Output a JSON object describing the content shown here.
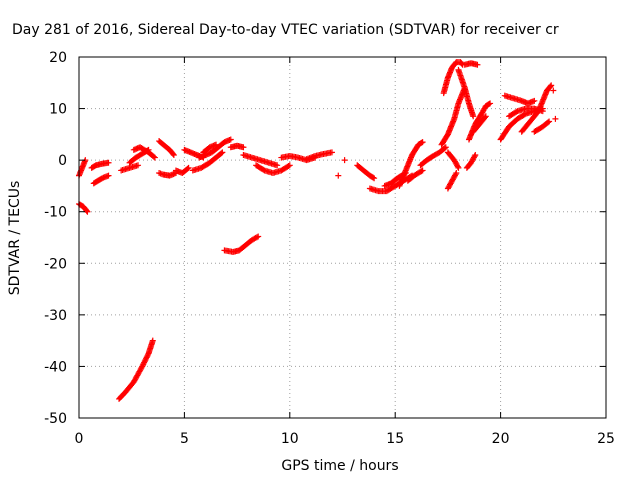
{
  "chart_data": {
    "type": "scatter",
    "title": "Day 281 of 2016, Sidereal Day-to-day VTEC variation (SDTVAR) for receiver cr",
    "xlabel": "GPS time / hours",
    "ylabel": "SDTVAR / TECUs",
    "xlim": [
      0,
      25
    ],
    "ylim": [
      -50,
      20
    ],
    "x_ticks": [
      "0",
      "5",
      "10",
      "15",
      "20",
      "25"
    ],
    "y_ticks": [
      "20",
      "10",
      "0",
      "-10",
      "-20",
      "-30",
      "-40",
      "-50"
    ],
    "x_tick_values": [
      0,
      5,
      10,
      15,
      20,
      25
    ],
    "y_tick_values": [
      20,
      10,
      0,
      -10,
      -20,
      -30,
      -40,
      -50
    ],
    "grid": true,
    "marker": "+",
    "color": "#ff0000",
    "segments": [
      [
        [
          0.0,
          -3
        ],
        [
          0.1,
          -2
        ],
        [
          0.2,
          -1
        ],
        [
          0.3,
          0
        ]
      ],
      [
        [
          0.0,
          -8.5
        ],
        [
          0.2,
          -9
        ],
        [
          0.3,
          -9.5
        ],
        [
          0.4,
          -10
        ]
      ],
      [
        [
          0.6,
          -1.5
        ],
        [
          0.8,
          -1
        ],
        [
          1.1,
          -0.7
        ],
        [
          1.4,
          -0.5
        ]
      ],
      [
        [
          0.7,
          -4.5
        ],
        [
          0.9,
          -4
        ],
        [
          1.1,
          -3.5
        ],
        [
          1.4,
          -3
        ]
      ],
      [
        [
          1.9,
          -46.3
        ],
        [
          2.2,
          -45
        ],
        [
          2.6,
          -43
        ],
        [
          3.0,
          -40
        ],
        [
          3.3,
          -37.5
        ],
        [
          3.5,
          -35
        ]
      ],
      [
        [
          2.0,
          -2
        ],
        [
          2.4,
          -1.5
        ],
        [
          2.8,
          -1
        ]
      ],
      [
        [
          2.4,
          -0.5
        ],
        [
          2.7,
          0.5
        ],
        [
          3.1,
          1.5
        ],
        [
          3.3,
          2
        ]
      ],
      [
        [
          2.6,
          2
        ],
        [
          2.9,
          2.5
        ],
        [
          3.3,
          1.5
        ],
        [
          3.6,
          0.5
        ]
      ],
      [
        [
          3.8,
          3.7
        ],
        [
          4.0,
          3
        ],
        [
          4.3,
          2
        ],
        [
          4.5,
          1
        ]
      ],
      [
        [
          3.8,
          -2.5
        ],
        [
          4.0,
          -2.8
        ],
        [
          4.3,
          -3
        ],
        [
          4.6,
          -2.5
        ]
      ],
      [
        [
          4.6,
          -2
        ],
        [
          4.9,
          -2.5
        ],
        [
          5.2,
          -1.5
        ]
      ],
      [
        [
          5.0,
          2
        ],
        [
          5.3,
          1.5
        ],
        [
          5.6,
          1
        ],
        [
          5.9,
          0.5
        ]
      ],
      [
        [
          5.4,
          -2
        ],
        [
          5.8,
          -1.5
        ],
        [
          6.2,
          -0.5
        ],
        [
          6.5,
          0.5
        ],
        [
          6.8,
          1.5
        ]
      ],
      [
        [
          5.7,
          0.5
        ],
        [
          6.0,
          1
        ],
        [
          6.3,
          1.5
        ],
        [
          6.6,
          2.5
        ],
        [
          6.9,
          3.5
        ],
        [
          7.2,
          4
        ]
      ],
      [
        [
          5.9,
          1.5
        ],
        [
          6.2,
          2.5
        ],
        [
          6.5,
          3
        ]
      ],
      [
        [
          6.9,
          -17.5
        ],
        [
          7.3,
          -17.8
        ],
        [
          7.6,
          -17.5
        ],
        [
          7.9,
          -16.5
        ],
        [
          8.2,
          -15.5
        ],
        [
          8.5,
          -14.8
        ]
      ],
      [
        [
          7.2,
          2.5
        ],
        [
          7.5,
          2.8
        ],
        [
          7.8,
          2.5
        ]
      ],
      [
        [
          7.8,
          1
        ],
        [
          8.2,
          0.5
        ],
        [
          8.6,
          0
        ],
        [
          9.0,
          -0.5
        ],
        [
          9.4,
          -1
        ]
      ],
      [
        [
          8.4,
          -1
        ],
        [
          8.8,
          -2
        ],
        [
          9.2,
          -2.5
        ],
        [
          9.6,
          -2
        ],
        [
          10.0,
          -1
        ]
      ],
      [
        [
          9.6,
          0.5
        ],
        [
          10.0,
          0.8
        ],
        [
          10.4,
          0.5
        ],
        [
          10.8,
          0
        ],
        [
          11.2,
          0.5
        ]
      ],
      [
        [
          10.8,
          0.2
        ],
        [
          11.2,
          0.8
        ],
        [
          11.6,
          1.2
        ],
        [
          12.0,
          1.5
        ]
      ],
      [
        [
          12.3,
          -3
        ]
      ],
      [
        [
          12.6,
          0
        ]
      ],
      [
        [
          13.2,
          -1
        ],
        [
          13.5,
          -2
        ],
        [
          13.8,
          -3
        ],
        [
          14.0,
          -3.5
        ]
      ],
      [
        [
          13.8,
          -5.5
        ],
        [
          14.2,
          -6
        ],
        [
          14.6,
          -6
        ],
        [
          15.0,
          -5
        ],
        [
          15.4,
          -4
        ],
        [
          15.8,
          -3
        ]
      ],
      [
        [
          14.5,
          -5
        ],
        [
          14.8,
          -4.5
        ],
        [
          15.1,
          -3.5
        ],
        [
          15.5,
          -2.5
        ]
      ],
      [
        [
          15.2,
          -5
        ],
        [
          15.5,
          -2
        ],
        [
          15.8,
          1
        ],
        [
          16.1,
          3
        ],
        [
          16.3,
          3.5
        ]
      ],
      [
        [
          15.6,
          -4
        ],
        [
          15.9,
          -3
        ],
        [
          16.3,
          -2
        ]
      ],
      [
        [
          16.2,
          -1
        ],
        [
          16.5,
          0
        ],
        [
          16.8,
          0.8
        ],
        [
          17.1,
          1.5
        ],
        [
          17.4,
          2.5
        ]
      ],
      [
        [
          17.2,
          3
        ],
        [
          17.5,
          5
        ],
        [
          17.8,
          8
        ],
        [
          18.0,
          11
        ],
        [
          18.3,
          14
        ]
      ],
      [
        [
          17.3,
          13
        ],
        [
          17.5,
          16
        ],
        [
          17.7,
          18
        ],
        [
          17.9,
          19
        ],
        [
          18.1,
          19
        ],
        [
          18.2,
          18.5
        ]
      ],
      [
        [
          17.5,
          -5.5
        ],
        [
          17.7,
          -4
        ],
        [
          17.9,
          -2.5
        ]
      ],
      [
        [
          17.5,
          1.5
        ],
        [
          17.8,
          0
        ],
        [
          18.0,
          -1.5
        ]
      ],
      [
        [
          18.0,
          17.5
        ],
        [
          18.3,
          14
        ],
        [
          18.5,
          11
        ],
        [
          18.7,
          8.5
        ]
      ],
      [
        [
          18.3,
          18.5
        ],
        [
          18.6,
          18.8
        ],
        [
          18.9,
          18.5
        ]
      ],
      [
        [
          18.4,
          -1.5
        ],
        [
          18.6,
          -0.5
        ],
        [
          18.8,
          1
        ]
      ],
      [
        [
          18.5,
          4
        ],
        [
          18.8,
          7
        ],
        [
          19.1,
          9
        ],
        [
          19.3,
          10.5
        ],
        [
          19.5,
          11
        ]
      ],
      [
        [
          18.7,
          5.5
        ],
        [
          19.0,
          7
        ],
        [
          19.3,
          8.5
        ]
      ],
      [
        [
          20.0,
          4
        ],
        [
          20.4,
          6.5
        ],
        [
          20.8,
          8
        ],
        [
          21.2,
          9
        ],
        [
          21.6,
          9.5
        ],
        [
          22.0,
          10
        ]
      ],
      [
        [
          20.2,
          12.5
        ],
        [
          20.6,
          12
        ],
        [
          21.0,
          11.5
        ],
        [
          21.3,
          11
        ],
        [
          21.6,
          11.5
        ]
      ],
      [
        [
          20.4,
          8.5
        ],
        [
          20.8,
          9.5
        ],
        [
          21.2,
          10
        ],
        [
          21.6,
          10
        ],
        [
          22.0,
          9.5
        ]
      ],
      [
        [
          21.0,
          5.5
        ],
        [
          21.4,
          7.5
        ],
        [
          21.8,
          9.5
        ],
        [
          22.0,
          11.5
        ],
        [
          22.2,
          13.5
        ],
        [
          22.4,
          14.5
        ]
      ],
      [
        [
          21.6,
          5.5
        ],
        [
          22.0,
          6.5
        ],
        [
          22.3,
          7.5
        ]
      ],
      [
        [
          22.5,
          13.5
        ]
      ],
      [
        [
          22.6,
          8
        ]
      ]
    ]
  }
}
